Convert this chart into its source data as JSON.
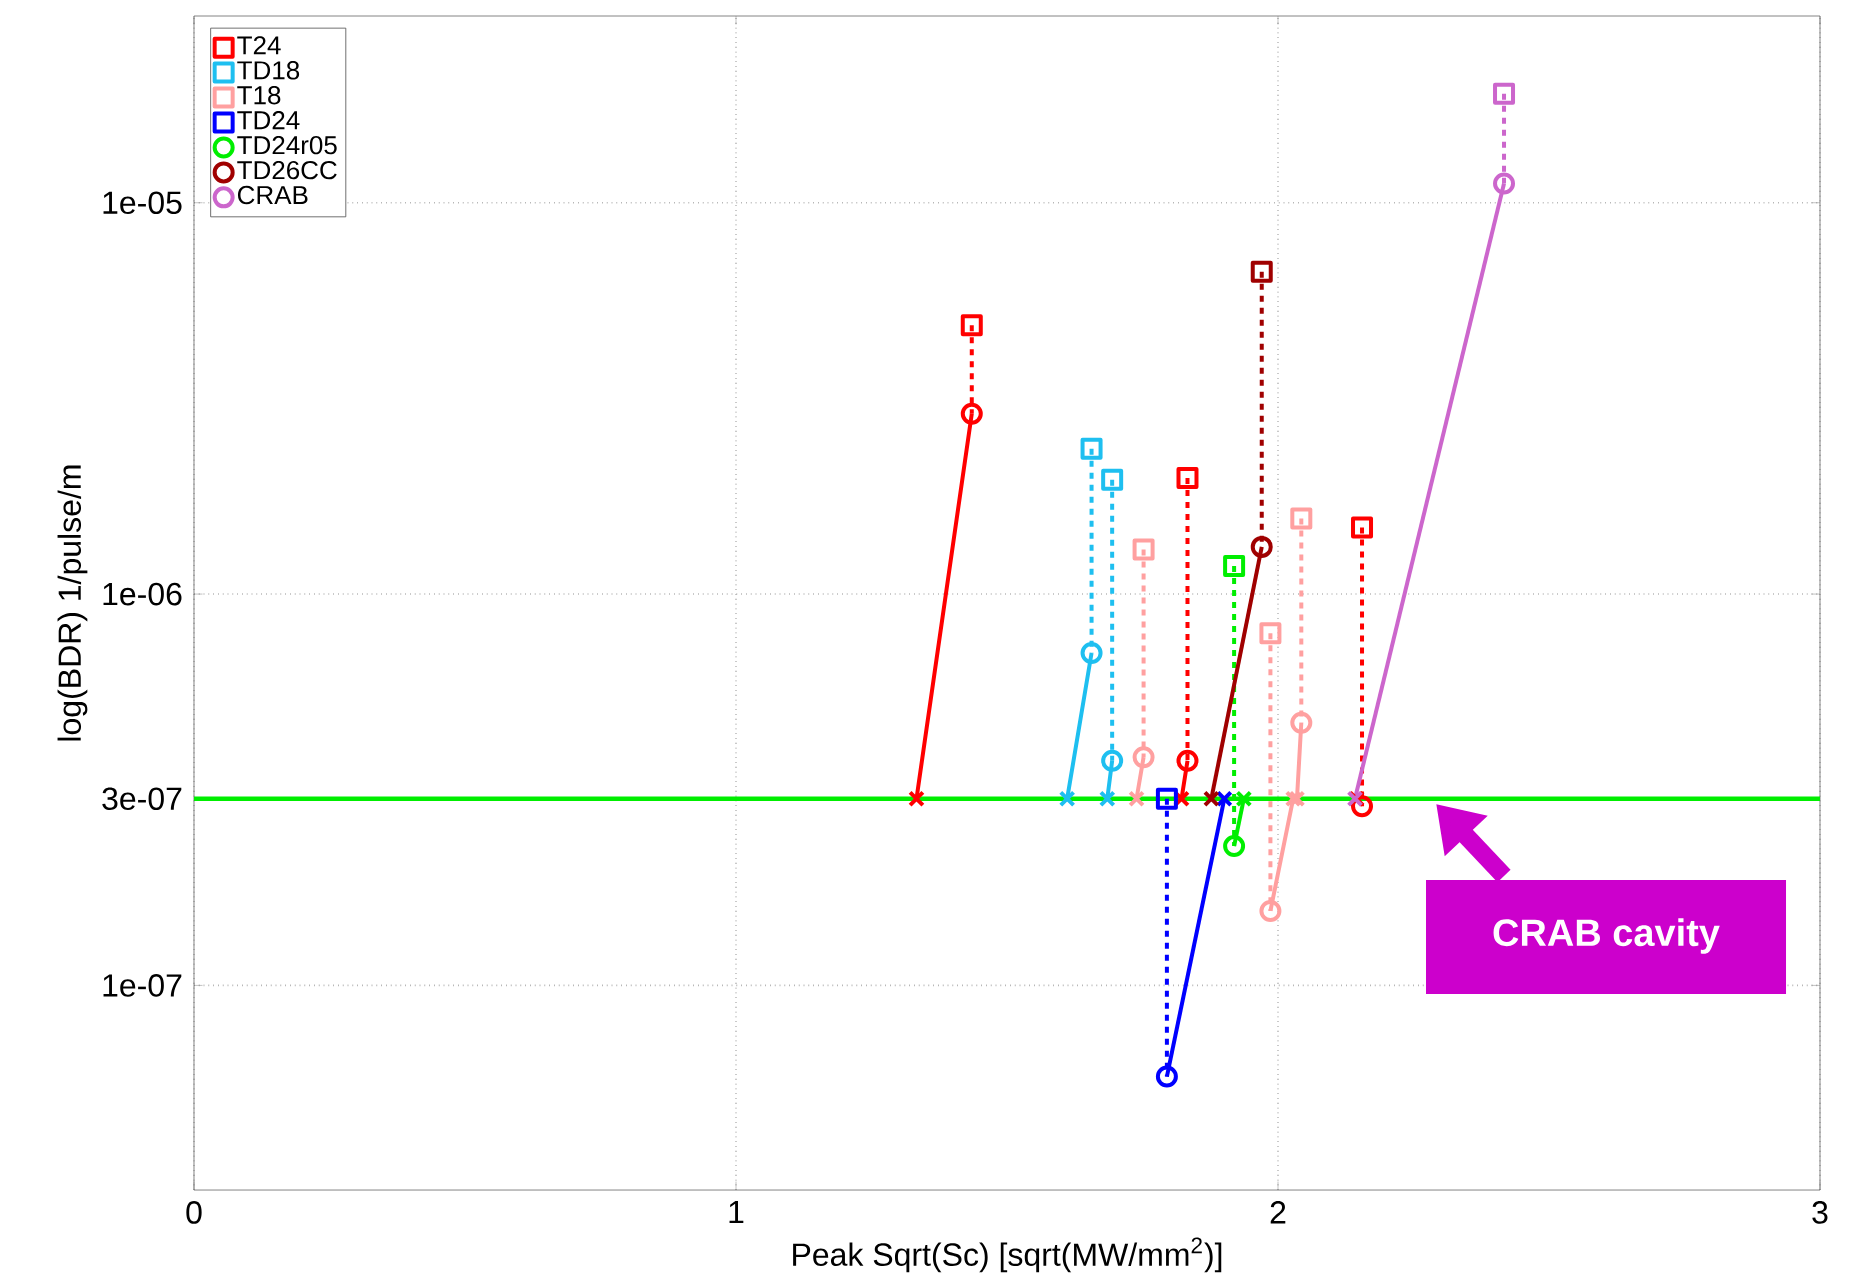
{
  "chart_data": {
    "type": "line",
    "xlabel": "Peak Sqrt(Sc) [sqrt(MW/mm$^{2}$)]",
    "ylabel": "log(BDR) 1/pulse/m",
    "xlim": [
      0,
      3
    ],
    "ylim": [
      3e-08,
      3e-05
    ],
    "log": "y",
    "grid": true,
    "legend": "top left",
    "xticks": [
      0,
      1,
      2,
      3
    ],
    "yticks": [
      {
        "value": 1e-07,
        "label": "1e-07"
      },
      {
        "value": 3e-07,
        "label": "3e-07"
      },
      {
        "value": 1e-06,
        "label": "1e-06"
      },
      {
        "value": 1e-05,
        "label": "1e-05"
      }
    ],
    "ref_lines": [
      {
        "axis": "y",
        "value": 3e-07,
        "color": "#00ee00"
      }
    ],
    "annotations": [
      "CRAB cavity"
    ],
    "series": [
      {
        "type": "line",
        "line_style": "dashed",
        "marker": "none",
        "color": "#ff0000",
        "x": [
          1.435,
          1.435,
          null,
          1.833,
          1.833,
          null,
          2.155,
          2.155
        ],
        "values": [
          4.86e-06,
          2.89e-06,
          null,
          1.98e-06,
          3.75e-07,
          null,
          1.48e-06,
          2.87e-07
        ]
      },
      {
        "line_style": "solid",
        "marker": "none",
        "color": "#ff0000",
        "x": [
          1.435,
          1.333,
          null,
          1.833,
          1.822
        ],
        "values": [
          2.89e-06,
          3e-07,
          null,
          3.75e-07,
          3e-07
        ]
      },
      {
        "type": "scatter",
        "marker": "square",
        "name": "T24",
        "color": "#ff0000",
        "x": [
          1.435,
          1.833,
          2.155
        ],
        "values": [
          4.86e-06,
          1.98e-06,
          1.48e-06
        ]
      },
      {
        "type": "scatter",
        "marker": "circle",
        "color": "#ff0000",
        "x": [
          1.435,
          1.833,
          2.155
        ],
        "values": [
          2.89e-06,
          3.75e-07,
          2.87e-07
        ]
      },
      {
        "type": "scatter",
        "marker": "cross",
        "color": "#ff0000",
        "x": [
          1.333,
          1.822,
          2.145
        ],
        "values": [
          3e-07,
          3e-07,
          3e-07
        ]
      },
      {
        "type": "line",
        "line_style": "dashed",
        "marker": "none",
        "color": "#1ebff0",
        "x": [
          1.656,
          1.656,
          null,
          1.694,
          1.694
        ],
        "values": [
          2.35e-06,
          7.07e-07,
          null,
          1.96e-06,
          3.75e-07
        ]
      },
      {
        "type": "line",
        "line_style": "solid",
        "marker": "none",
        "color": "#1ebff0",
        "x": [
          1.656,
          1.611,
          null,
          1.694,
          1.685
        ],
        "values": [
          7.07e-07,
          3e-07,
          null,
          3.75e-07,
          3e-07
        ]
      },
      {
        "type": "scatter",
        "marker": "square",
        "name": "TD18",
        "color": "#1ebff0",
        "x": [
          1.656,
          1.694
        ],
        "values": [
          2.35e-06,
          1.96e-06
        ]
      },
      {
        "type": "scatter",
        "marker": "circle",
        "color": "#1ebff0",
        "x": [
          1.656,
          1.694
        ],
        "values": [
          7.07e-07,
          3.75e-07
        ]
      },
      {
        "type": "scatter",
        "marker": "cross",
        "color": "#1ebff0",
        "x": [
          1.611,
          1.685
        ],
        "values": [
          3e-07,
          3e-07
        ]
      },
      {
        "type": "line",
        "line_style": "dashed",
        "marker": "none",
        "color": "#ffa0a0",
        "x": [
          1.752,
          1.752,
          null,
          1.986,
          1.986,
          null,
          2.043,
          2.043
        ],
        "values": [
          1.3e-06,
          3.83e-07,
          null,
          7.94e-07,
          1.55e-07,
          null,
          1.56e-06,
          4.69e-07
        ]
      },
      {
        "type": "line",
        "line_style": "solid",
        "marker": "none",
        "color": "#ffa0a0",
        "x": [
          1.752,
          1.739,
          null,
          1.986,
          2.028,
          null,
          2.043,
          2.035
        ],
        "values": [
          3.83e-07,
          3e-07,
          null,
          1.55e-07,
          3e-07,
          null,
          4.69e-07,
          3e-07
        ]
      },
      {
        "type": "scatter",
        "marker": "square",
        "name": "T18",
        "color": "#ffa0a0",
        "x": [
          1.752,
          1.986,
          2.043
        ],
        "values": [
          1.3e-06,
          7.94e-07,
          1.56e-06
        ]
      },
      {
        "type": "scatter",
        "marker": "circle",
        "color": "#ffa0a0",
        "x": [
          1.752,
          1.986,
          2.043
        ],
        "values": [
          3.83e-07,
          1.55e-07,
          4.69e-07
        ]
      },
      {
        "type": "scatter",
        "marker": "cross",
        "color": "#ffa0a0",
        "x": [
          1.739,
          2.028,
          2.035
        ],
        "values": [
          3e-07,
          3e-07,
          3e-07
        ]
      },
      {
        "type": "line",
        "line_style": "dashed",
        "marker": "none",
        "color": "#0000ff",
        "x": [
          1.795,
          1.795
        ],
        "values": [
          3e-07,
          5.85e-08
        ]
      },
      {
        "type": "line",
        "line_style": "solid",
        "marker": "none",
        "color": "#0000ff",
        "x": [
          1.795,
          1.901
        ],
        "values": [
          5.85e-08,
          3e-07
        ]
      },
      {
        "type": "scatter",
        "marker": "square",
        "name": "TD24",
        "color": "#0000ff",
        "x": [
          1.795
        ],
        "values": [
          3e-07
        ]
      },
      {
        "type": "scatter",
        "marker": "circle",
        "color": "#0000ff",
        "x": [
          1.795
        ],
        "values": [
          5.85e-08
        ]
      },
      {
        "type": "scatter",
        "marker": "cross",
        "color": "#0000ff",
        "x": [
          1.901
        ],
        "values": [
          3e-07
        ]
      },
      {
        "type": "line",
        "line_style": "dashed",
        "marker": "none",
        "color": "#00ee00",
        "x": [
          1.919,
          1.919
        ],
        "values": [
          1.18e-06,
          2.27e-07
        ]
      },
      {
        "type": "line",
        "line_style": "solid",
        "marker": "none",
        "color": "#00ee00",
        "x": [
          1.919,
          1.937
        ],
        "values": [
          2.27e-07,
          3e-07
        ]
      },
      {
        "type": "scatter",
        "marker": "square",
        "color": "#00ee00",
        "x": [
          1.919
        ],
        "values": [
          1.18e-06
        ]
      },
      {
        "type": "scatter",
        "marker": "circle",
        "name": "TD24r05",
        "color": "#00ee00",
        "x": [
          1.919
        ],
        "values": [
          2.27e-07
        ]
      },
      {
        "type": "scatter",
        "marker": "cross",
        "color": "#00ee00",
        "x": [
          1.937
        ],
        "values": [
          3e-07
        ]
      },
      {
        "type": "line",
        "line_style": "dashed",
        "marker": "none",
        "color": "#a00000",
        "x": [
          1.97,
          1.97
        ],
        "values": [
          6.66e-06,
          1.32e-06
        ]
      },
      {
        "type": "line",
        "line_style": "solid",
        "marker": "none",
        "color": "#a00000",
        "x": [
          1.97,
          1.877
        ],
        "values": [
          1.32e-06,
          3e-07
        ]
      },
      {
        "type": "scatter",
        "marker": "square",
        "color": "#a00000",
        "x": [
          1.97
        ],
        "values": [
          6.66e-06
        ]
      },
      {
        "type": "scatter",
        "marker": "circle",
        "name": "TD26CC",
        "color": "#a00000",
        "x": [
          1.97
        ],
        "values": [
          1.32e-06
        ]
      },
      {
        "type": "scatter",
        "marker": "cross",
        "color": "#a00000",
        "x": [
          1.877
        ],
        "values": [
          3e-07
        ]
      },
      {
        "type": "line",
        "line_style": "dashed",
        "marker": "none",
        "color": "#cc66cc",
        "x": [
          2.417,
          2.417
        ],
        "values": [
          1.9e-05,
          1.12e-05
        ]
      },
      {
        "type": "line",
        "line_style": "solid",
        "marker": "none",
        "color": "#cc66cc",
        "x": [
          2.417,
          2.142
        ],
        "values": [
          1.12e-05,
          3e-07
        ]
      },
      {
        "type": "scatter",
        "marker": "square",
        "color": "#cc66cc",
        "x": [
          2.417
        ],
        "values": [
          1.9e-05
        ]
      },
      {
        "type": "scatter",
        "marker": "circle",
        "name": "CRAB",
        "color": "#cc66cc",
        "x": [
          2.417
        ],
        "values": [
          1.12e-05
        ]
      },
      {
        "type": "scatter",
        "marker": "cross",
        "color": "#cc66cc",
        "x": [
          2.142
        ],
        "values": [
          3e-07
        ]
      }
    ]
  }
}
